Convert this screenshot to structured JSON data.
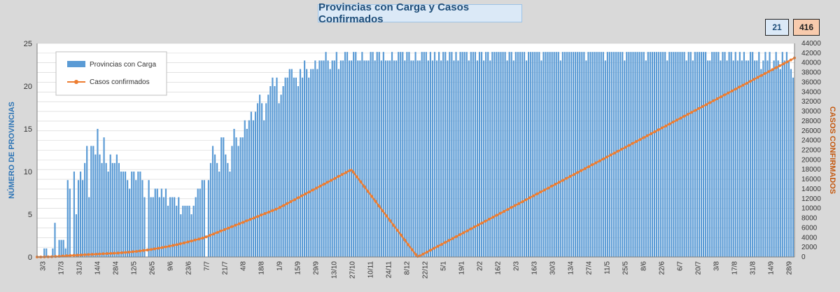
{
  "chart_data": {
    "type": "bar",
    "title": "Provincias con Carga y Casos Confirmados",
    "ylabel": "NÚMERO DE PROVINCIAS",
    "ylabel_right": "CASOS CONFIRMADOS",
    "ylim": [
      0,
      25
    ],
    "ylim_right": [
      0,
      44000
    ],
    "yticks": [
      0,
      5,
      10,
      15,
      20,
      25
    ],
    "yticks_right": [
      0,
      2000,
      4000,
      6000,
      8000,
      10000,
      12000,
      14000,
      16000,
      18000,
      20000,
      22000,
      24000,
      26000,
      28000,
      30000,
      32000,
      34000,
      36000,
      38000,
      40000,
      42000,
      44000
    ],
    "xtick_labels": [
      "3/3",
      "17/3",
      "31/3",
      "14/4",
      "28/4",
      "12/5",
      "26/5",
      "9/6",
      "23/6",
      "7/7",
      "21/7",
      "4/8",
      "18/8",
      "1/9",
      "15/9",
      "29/9",
      "13/10",
      "27/10",
      "10/11",
      "24/11",
      "8/12",
      "22/12",
      "5/1",
      "19/1",
      "2/2",
      "16/2",
      "2/3",
      "16/3",
      "30/3",
      "13/4",
      "27/4",
      "11/5",
      "25/5",
      "8/6",
      "22/6",
      "6/7",
      "20/7",
      "3/8",
      "17/8",
      "31/8",
      "14/9",
      "28/9"
    ],
    "legend": [
      "Provincias con Carga",
      "Casos confirmados"
    ],
    "series": [
      {
        "name": "Provincias con Carga",
        "axis": "left",
        "color": "#5b9bd5",
        "values": [
          0,
          0,
          0,
          1,
          1,
          0,
          0,
          1,
          4,
          0,
          2,
          2,
          2,
          1,
          9,
          8,
          0,
          10,
          5,
          9,
          10,
          9,
          11,
          13,
          7,
          13,
          13,
          12,
          15,
          12,
          11,
          14,
          11,
          10,
          12,
          11,
          11,
          12,
          11,
          10,
          10,
          10,
          9,
          8,
          10,
          10,
          9,
          10,
          10,
          9,
          7,
          0,
          9,
          7,
          7,
          8,
          8,
          7,
          8,
          7,
          8,
          6,
          7,
          7,
          7,
          6,
          7,
          5,
          6,
          6,
          6,
          6,
          5,
          6,
          7,
          8,
          8,
          9,
          9,
          0,
          9,
          11,
          13,
          12,
          11,
          10,
          14,
          14,
          12,
          11,
          10,
          13,
          15,
          14,
          13,
          14,
          14,
          16,
          15,
          16,
          17,
          16,
          17,
          18,
          19,
          18,
          16,
          18,
          19,
          20,
          21,
          20,
          21,
          18,
          19,
          20,
          21,
          21,
          22,
          22,
          21,
          21,
          20,
          22,
          21,
          23,
          22,
          21,
          22,
          22,
          23,
          22,
          23,
          23,
          23,
          24,
          23,
          22,
          23,
          23,
          24,
          22,
          23,
          23,
          24,
          24,
          23,
          23,
          24,
          24,
          23,
          23,
          24,
          23,
          23,
          23,
          24,
          24,
          23,
          24,
          24,
          23,
          24,
          23,
          23,
          23,
          24,
          23,
          23,
          24,
          24,
          24,
          23,
          24,
          24,
          23,
          23,
          24,
          23,
          23,
          24,
          24,
          24,
          23,
          24,
          23,
          24,
          23,
          24,
          23,
          24,
          24,
          23,
          24,
          24,
          23,
          24,
          23,
          24,
          24,
          24,
          24,
          23,
          24,
          24,
          24,
          23,
          24,
          24,
          23,
          24,
          24,
          23,
          24,
          24,
          24,
          24,
          24,
          24,
          24,
          23,
          24,
          24,
          23,
          24,
          24,
          24,
          24,
          24,
          23,
          24,
          24,
          24,
          24,
          24,
          24,
          23,
          24,
          24,
          24,
          24,
          24,
          24,
          24,
          24,
          23,
          24,
          24,
          24,
          24,
          24,
          24,
          24,
          24,
          24,
          24,
          24,
          23,
          24,
          24,
          24,
          24,
          24,
          24,
          24,
          24,
          23,
          24,
          24,
          24,
          24,
          24,
          24,
          24,
          24,
          23,
          24,
          24,
          24,
          24,
          24,
          24,
          24,
          24,
          24,
          23,
          24,
          24,
          24,
          24,
          24,
          24,
          24,
          24,
          24,
          23,
          24,
          24,
          24,
          24,
          24,
          24,
          24,
          24,
          23,
          24,
          24,
          23,
          24,
          24,
          24,
          24,
          24,
          24,
          23,
          23,
          24,
          24,
          24,
          24,
          23,
          24,
          24,
          23,
          24,
          24,
          23,
          24,
          23,
          24,
          23,
          24,
          23,
          23,
          24,
          24,
          23,
          23,
          24,
          22,
          23,
          24,
          23,
          24,
          22,
          23,
          24,
          23,
          22,
          24,
          23,
          24,
          23,
          22,
          21
        ]
      },
      {
        "name": "Casos confirmados",
        "axis": "right",
        "color": "#ed7d31",
        "values": [
          0,
          0,
          0,
          10,
          20,
          30,
          40,
          50,
          60,
          80,
          100,
          120,
          150,
          170,
          200,
          220,
          250,
          270,
          300,
          320,
          340,
          360,
          380,
          400,
          420,
          440,
          460,
          480,
          500,
          520,
          540,
          560,
          580,
          600,
          620,
          640,
          660,
          680,
          700,
          720,
          740,
          760,
          780,
          800,
          820,
          850,
          880,
          910,
          940,
          970,
          1000,
          1040,
          1080,
          1120,
          1160,
          1200,
          1250,
          1300,
          1350,
          1400,
          1450,
          1500,
          1560,
          1620,
          1680,
          1740,
          1800,
          1870,
          1940,
          2010,
          2080,
          2150,
          2230,
          2310,
          2390,
          2470,
          2550,
          2640,
          2730,
          2820,
          2910,
          3000,
          3100,
          3200,
          3300,
          3400,
          3500,
          3600,
          3700,
          3800,
          3900,
          4000,
          4150,
          4300,
          4450,
          4600,
          4750,
          4900,
          5050,
          5200,
          5350,
          5500,
          5650,
          5800,
          5950,
          6100,
          6250,
          6400,
          6550,
          6700,
          6850,
          7000,
          7150,
          7300,
          7450,
          7600,
          7750,
          7900,
          8050,
          8200,
          8350,
          8500,
          8650,
          8800,
          8950,
          9100,
          9250,
          9400,
          9550,
          9700,
          9850,
          10000,
          10200,
          10400,
          10600,
          10800,
          11000,
          11200,
          11400,
          11600,
          11800,
          12000,
          12200,
          12400,
          12600,
          12800,
          13000,
          13200,
          13400,
          13600,
          13800,
          14000,
          14200,
          14400,
          14600,
          14800,
          15000,
          15200,
          15400,
          15600,
          15800,
          16000,
          16200,
          16400,
          16600,
          16800,
          17000,
          17200,
          17400,
          17600,
          17800,
          18000,
          17500,
          17000,
          16500,
          16000,
          15500,
          15000,
          14500,
          14000,
          13500,
          13000,
          12500,
          12000,
          11500,
          11000,
          10500,
          10000,
          9500,
          9000,
          8500,
          8000,
          7500,
          7000,
          6500,
          6000,
          5500,
          5000,
          4500,
          4000,
          3500,
          3000,
          2500,
          2000,
          1500,
          1000,
          500,
          0,
          200,
          400,
          600,
          800,
          1000,
          1200,
          1400,
          1600,
          1800,
          2000,
          2200,
          2400,
          2600,
          2800,
          3000,
          3200,
          3400,
          3600,
          3800,
          4000,
          4200,
          4400,
          4600,
          4800,
          5000,
          5200,
          5400,
          5600,
          5800,
          6000,
          6200,
          6400,
          6600,
          6800,
          7000,
          7200,
          7400,
          7600,
          7800,
          8000,
          8200,
          8400,
          8600,
          8800,
          9000,
          9200,
          9400,
          9600,
          9800,
          10000,
          10200,
          10400,
          10600,
          10800,
          11000,
          11200,
          11400,
          11600,
          11800,
          12000,
          12200,
          12400,
          12600,
          12800,
          13000,
          13200,
          13400,
          13600,
          13800,
          14000,
          14200,
          14400,
          14600,
          14800,
          15000,
          15200,
          15400,
          15600,
          15800,
          16000,
          16200,
          16400,
          16600,
          16800,
          17000,
          17200,
          17400,
          17600,
          17800,
          18000,
          18200,
          18400,
          18600,
          18800,
          19000,
          19200,
          19400,
          19600,
          19800,
          20000,
          20200,
          20400,
          20600,
          20800,
          21000,
          21200,
          21400,
          21600,
          21800,
          22000,
          22200,
          22400,
          22600,
          22800,
          23000,
          23200,
          23400,
          23600,
          23800,
          24000,
          24200,
          24400,
          24600,
          24800,
          25000,
          25200,
          25400,
          25600,
          25800,
          26000,
          26200,
          26400,
          26600,
          26800,
          27000,
          27200,
          27400,
          27600,
          27800,
          28000,
          28200,
          28400,
          28600,
          28800,
          29000,
          29200,
          29400,
          29600,
          29800,
          30000,
          30200,
          30400,
          30600,
          30800,
          31000,
          31200,
          31400,
          31600,
          31800,
          32000,
          32200,
          32400,
          32600,
          32800,
          33000,
          33200,
          33400,
          33600,
          33800,
          34000,
          34200,
          34400,
          34600,
          34800,
          35000,
          35200,
          35400,
          35600,
          35800,
          36000,
          36200,
          36400,
          36600,
          36800,
          37000,
          37200,
          37400,
          37600,
          37800,
          38000,
          38200,
          38400,
          38600,
          38800,
          39000,
          39200,
          39400,
          39600,
          39800,
          40000,
          40200,
          40400,
          40600,
          40800,
          41000
        ]
      }
    ]
  },
  "badges": {
    "provinces": "21",
    "cases": "416"
  }
}
